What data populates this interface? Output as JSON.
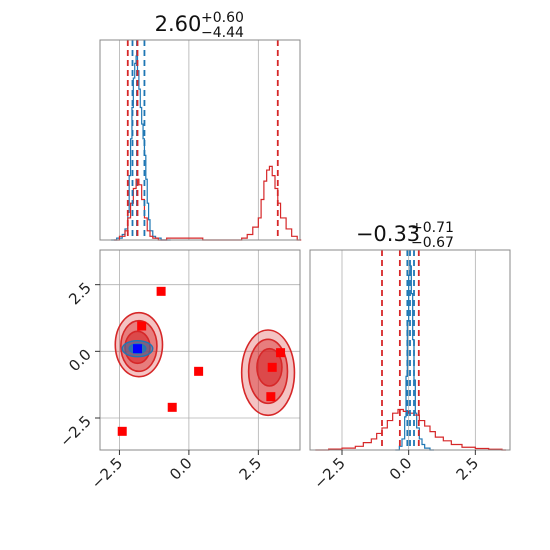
{
  "colors": {
    "blue": "#1f77b4",
    "red": "#d62728",
    "marker_red": "#ff0000",
    "marker_blue": "#0000ff",
    "grid": "#b0b0b0",
    "frame": "#888888"
  },
  "chart_data": [
    {
      "type": "histogram",
      "panel": "marginal-param-1",
      "title": {
        "value": "2.60",
        "upper": "+0.60",
        "lower": "−4.44"
      },
      "xlim": [
        -3.2,
        4.0
      ],
      "grid": true,
      "series": [
        {
          "color": "#1f77b4",
          "x": [
            -2.8,
            -2.6,
            -2.4,
            -2.3,
            -2.2,
            -2.15,
            -2.1,
            -2.05,
            -2.0,
            -1.95,
            -1.9,
            -1.85,
            -1.8,
            -1.75,
            -1.7,
            -1.65,
            -1.6,
            -1.55,
            -1.5,
            -1.45,
            -1.4,
            -1.3,
            -1.2,
            -1.0,
            -0.8
          ],
          "density": [
            0.0,
            0.01,
            0.03,
            0.06,
            0.15,
            0.35,
            0.55,
            0.72,
            0.88,
            0.96,
            1.0,
            0.92,
            0.82,
            0.72,
            0.63,
            0.55,
            0.46,
            0.33,
            0.2,
            0.11,
            0.05,
            0.02,
            0.01,
            0.0,
            0.0
          ],
          "quantile_lines": [
            -2.03,
            -1.87,
            -1.6
          ]
        },
        {
          "color": "#d62728",
          "x": [
            -2.7,
            -2.5,
            -2.3,
            -2.2,
            -2.1,
            -2.0,
            -1.9,
            -1.8,
            -1.7,
            -1.6,
            -1.5,
            -1.4,
            -1.3,
            -1.1,
            -0.8,
            0.5,
            1.5,
            1.9,
            2.1,
            2.3,
            2.5,
            2.6,
            2.7,
            2.8,
            2.9,
            3.0,
            3.1,
            3.2,
            3.3,
            3.5,
            3.7,
            3.9
          ],
          "density": [
            0.0,
            0.02,
            0.05,
            0.12,
            0.2,
            0.28,
            0.33,
            0.3,
            0.22,
            0.12,
            0.05,
            0.02,
            0.01,
            0.0,
            0.01,
            0.0,
            0.0,
            0.01,
            0.03,
            0.07,
            0.12,
            0.22,
            0.32,
            0.38,
            0.4,
            0.35,
            0.28,
            0.2,
            0.12,
            0.06,
            0.02,
            0.0
          ],
          "quantile_lines": [
            -2.2,
            -1.85,
            3.2
          ]
        }
      ]
    },
    {
      "type": "histogram",
      "panel": "marginal-param-2",
      "title": {
        "value": "−0.33",
        "upper": "+0.71",
        "lower": "−0.67"
      },
      "xlim": [
        -3.7,
        3.8
      ],
      "grid": true,
      "xticks": [
        -2.5,
        0.0,
        2.5
      ],
      "xtick_labels": [
        "−2.5",
        "0.0",
        "2.5"
      ],
      "series": [
        {
          "color": "#1f77b4",
          "x": [
            -0.5,
            -0.35,
            -0.25,
            -0.15,
            -0.1,
            -0.05,
            0.0,
            0.05,
            0.1,
            0.15,
            0.2,
            0.25,
            0.3,
            0.4,
            0.5,
            0.6,
            0.8
          ],
          "density": [
            0.0,
            0.02,
            0.06,
            0.18,
            0.4,
            0.7,
            0.95,
            1.0,
            0.85,
            0.6,
            0.38,
            0.2,
            0.12,
            0.06,
            0.03,
            0.01,
            0.0
          ],
          "quantile_lines": [
            -0.05,
            0.05,
            0.2
          ]
        },
        {
          "color": "#d62728",
          "x": [
            -3.5,
            -3.0,
            -2.5,
            -2.0,
            -1.7,
            -1.4,
            -1.2,
            -1.0,
            -0.8,
            -0.6,
            -0.4,
            -0.2,
            0.0,
            0.2,
            0.4,
            0.6,
            0.8,
            1.0,
            1.3,
            1.6,
            2.0,
            2.5,
            3.0,
            3.5
          ],
          "density": [
            0.0,
            0.005,
            0.01,
            0.02,
            0.04,
            0.06,
            0.09,
            0.12,
            0.16,
            0.2,
            0.22,
            0.21,
            0.2,
            0.19,
            0.16,
            0.13,
            0.1,
            0.07,
            0.05,
            0.03,
            0.015,
            0.008,
            0.004,
            0.0
          ],
          "quantile_lines": [
            -1.0,
            -0.33,
            0.38
          ]
        }
      ]
    },
    {
      "type": "scatter",
      "panel": "joint",
      "xlim": [
        -3.2,
        4.0
      ],
      "ylim": [
        -3.7,
        3.8
      ],
      "grid": true,
      "xticks": [
        -2.5,
        0.0,
        2.5
      ],
      "xtick_labels": [
        "−2.5",
        "0.0",
        "2.5"
      ],
      "yticks": [
        -2.5,
        0.0,
        2.5
      ],
      "ytick_labels": [
        "−2.5",
        "0.0",
        "2.5"
      ],
      "contours_red": [
        {
          "cx": -1.8,
          "cy": 0.25,
          "rx": 0.85,
          "ry": 1.2,
          "fill_opacity": 0.28
        },
        {
          "cx": -1.8,
          "cy": 0.2,
          "rx": 0.65,
          "ry": 0.95,
          "fill_opacity": 0.45
        },
        {
          "cx": -1.85,
          "cy": 0.15,
          "rx": 0.45,
          "ry": 0.6,
          "fill_opacity": 0.6
        },
        {
          "cx": 2.85,
          "cy": -0.8,
          "rx": 0.95,
          "ry": 1.6,
          "fill_opacity": 0.28
        },
        {
          "cx": 2.85,
          "cy": -0.75,
          "rx": 0.7,
          "ry": 1.2,
          "fill_opacity": 0.45
        },
        {
          "cx": 2.9,
          "cy": -0.6,
          "rx": 0.45,
          "ry": 0.7,
          "fill_opacity": 0.6
        }
      ],
      "contours_blue": [
        {
          "cx": -1.85,
          "cy": 0.1,
          "rx": 0.55,
          "ry": 0.3,
          "fill_opacity": 0.5
        },
        {
          "cx": -1.85,
          "cy": 0.1,
          "rx": 0.3,
          "ry": 0.18,
          "fill_opacity": 0.8
        }
      ],
      "red_markers": [
        {
          "x": -1.0,
          "y": 2.25
        },
        {
          "x": -1.7,
          "y": 0.95
        },
        {
          "x": 0.35,
          "y": -0.75
        },
        {
          "x": -0.6,
          "y": -2.1
        },
        {
          "x": -2.4,
          "y": -3.0
        },
        {
          "x": 3.3,
          "y": -0.05
        },
        {
          "x": 3.0,
          "y": -0.6
        },
        {
          "x": 2.95,
          "y": -1.7
        }
      ],
      "blue_markers": [
        {
          "x": -1.85,
          "y": 0.1
        }
      ]
    }
  ]
}
